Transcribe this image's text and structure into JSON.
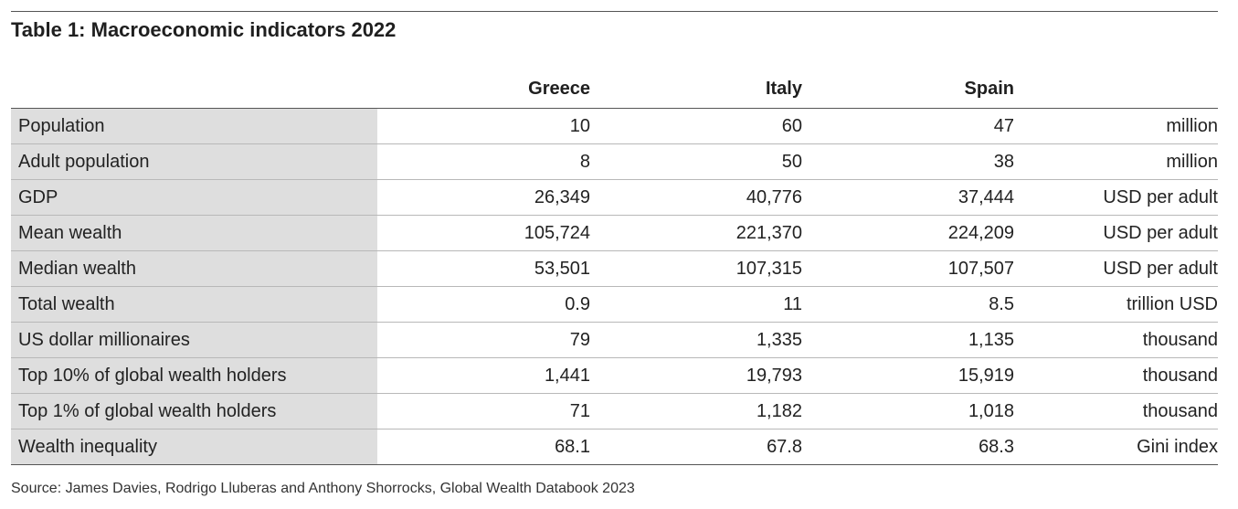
{
  "title": "Table 1: Macroeconomic indicators 2022",
  "columns": [
    "Greece",
    "Italy",
    "Spain"
  ],
  "rows": [
    {
      "label": "Population",
      "values": [
        "10",
        "60",
        "47"
      ],
      "unit": "million"
    },
    {
      "label": "Adult population",
      "values": [
        "8",
        "50",
        "38"
      ],
      "unit": "million"
    },
    {
      "label": "GDP",
      "values": [
        "26,349",
        "40,776",
        "37,444"
      ],
      "unit": "USD per adult"
    },
    {
      "label": "Mean wealth",
      "values": [
        "105,724",
        "221,370",
        "224,209"
      ],
      "unit": "USD per adult"
    },
    {
      "label": "Median wealth",
      "values": [
        "53,501",
        "107,315",
        "107,507"
      ],
      "unit": "USD per adult"
    },
    {
      "label": "Total wealth",
      "values": [
        "0.9",
        "11",
        "8.5"
      ],
      "unit": "trillion USD"
    },
    {
      "label": "US dollar millionaires",
      "values": [
        "79",
        "1,335",
        "1,135"
      ],
      "unit": "thousand"
    },
    {
      "label": "Top 10% of global wealth holders",
      "values": [
        "1,441",
        "19,793",
        "15,919"
      ],
      "unit": "thousand"
    },
    {
      "label": "Top 1% of global wealth holders",
      "values": [
        "71",
        "1,182",
        "1,018"
      ],
      "unit": "thousand"
    },
    {
      "label": "Wealth inequality",
      "values": [
        "68.1",
        "67.8",
        "68.3"
      ],
      "unit": "Gini index"
    }
  ],
  "source": "Source: James Davies, Rodrigo Lluberas and Anthony Shorrocks, Global Wealth Databook 2023"
}
